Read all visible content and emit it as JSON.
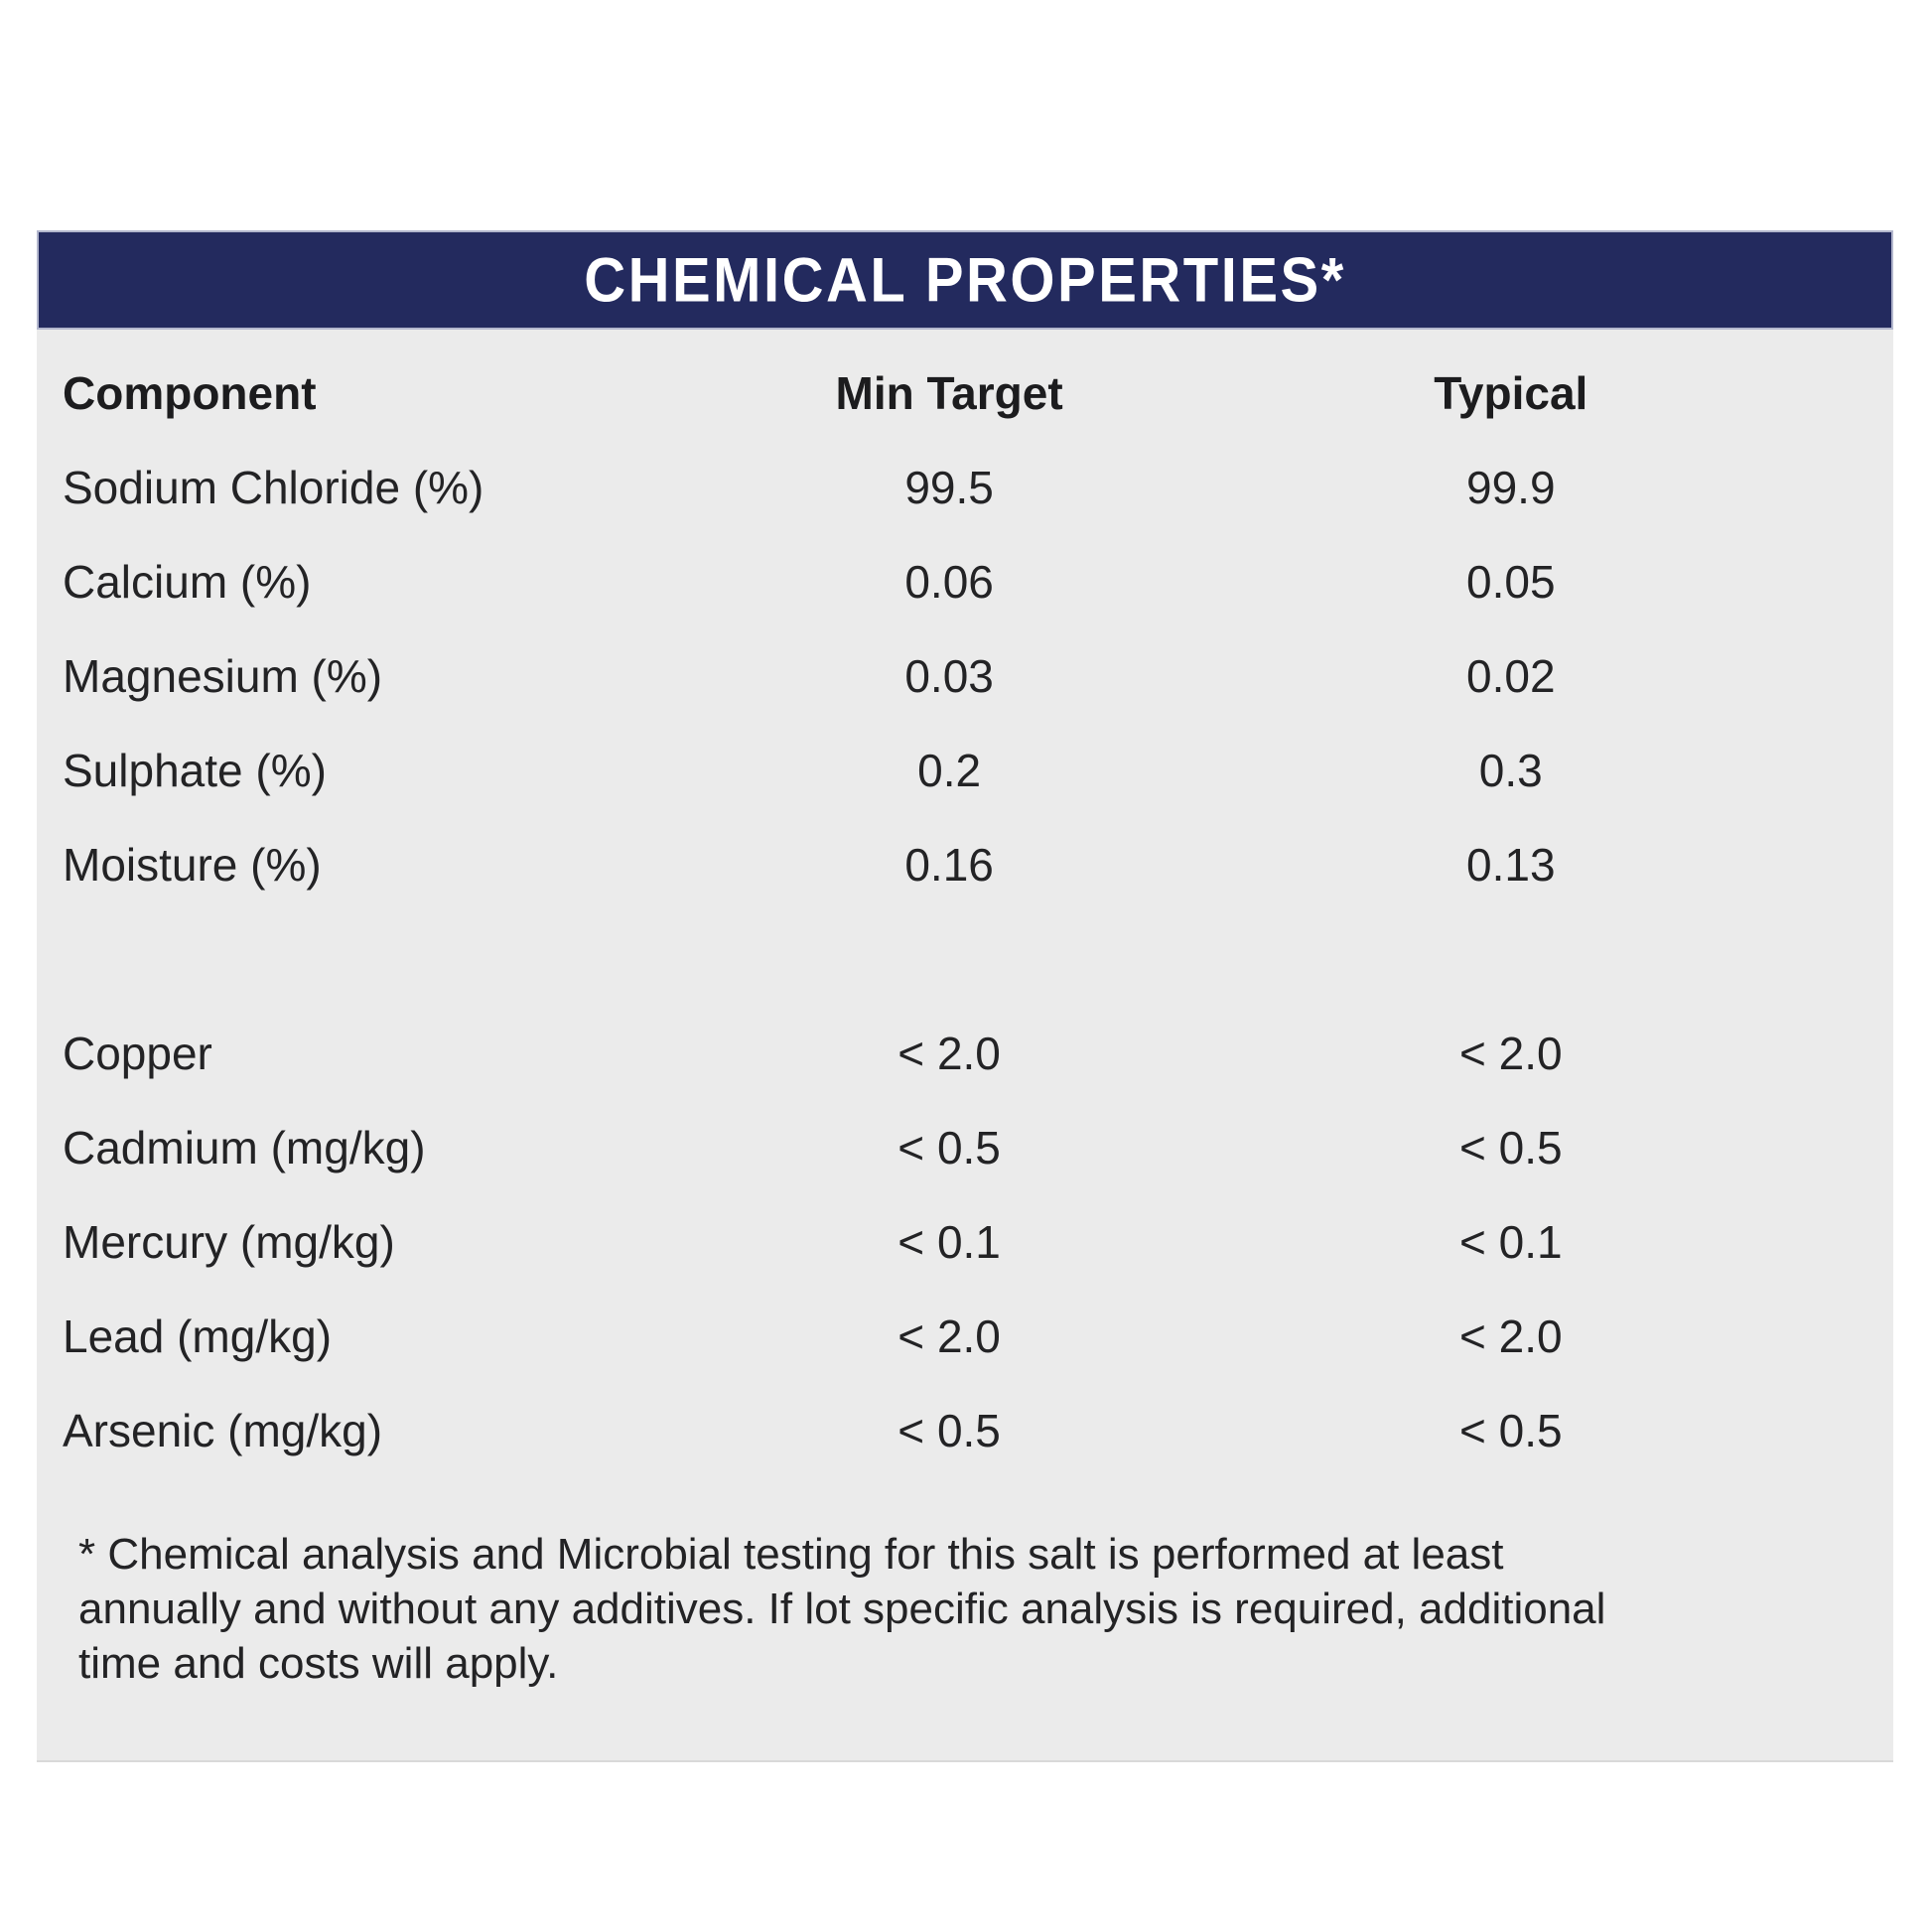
{
  "panel": {
    "title": "CHEMICAL PROPERTIES*",
    "colors": {
      "title_bar_bg": "#232a5e",
      "title_bar_border": "#b3b7cd",
      "title_text": "#ffffff",
      "panel_bg": "#ebebeb",
      "body_text": "#232325"
    }
  },
  "table": {
    "headers": {
      "component": "Component",
      "min_target": "Min Target",
      "typical": "Typical"
    },
    "rows": [
      {
        "component": "Sodium Chloride (%)",
        "min": "99.5",
        "typical": "99.9"
      },
      {
        "component": "Calcium (%)",
        "min": "0.06",
        "typical": "0.05"
      },
      {
        "component": "Magnesium (%)",
        "min": "0.03",
        "typical": "0.02"
      },
      {
        "component": "Sulphate (%)",
        "min": "0.2",
        "typical": "0.3"
      },
      {
        "component": "Moisture (%)",
        "min": "0.16",
        "typical": "0.13"
      },
      {
        "component": "Copper",
        "min": "< 2.0",
        "typical": "< 2.0"
      },
      {
        "component": "Cadmium (mg/kg)",
        "min": "< 0.5",
        "typical": "< 0.5"
      },
      {
        "component": "Mercury (mg/kg)",
        "min": "< 0.1",
        "typical": "< 0.1"
      },
      {
        "component": "Lead (mg/kg)",
        "min": "< 2.0",
        "typical": "< 2.0"
      },
      {
        "component": "Arsenic (mg/kg)",
        "min": "< 0.5",
        "typical": "< 0.5"
      }
    ]
  },
  "footnote": {
    "lines": [
      "* Chemical analysis and Microbial testing for this salt is performed at least",
      "annually and without any additives. If lot specific analysis is required, additional",
      "time and costs will apply."
    ]
  }
}
